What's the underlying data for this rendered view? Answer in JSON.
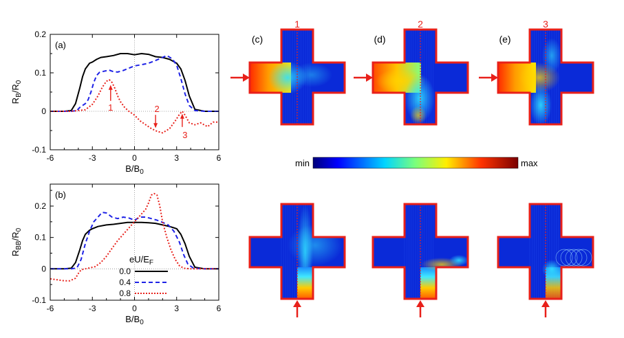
{
  "colors": {
    "black": "#000000",
    "blue": "#1e22e6",
    "red": "#e8201a",
    "frame": "#e8201a"
  },
  "panel_labels": [
    "(a)",
    "(b)",
    "(c)",
    "(d)",
    "(e)"
  ],
  "chart_data": [
    {
      "type": "line",
      "panel": "(a)",
      "xlabel": "B/B0",
      "ylabel": "RB/R0",
      "xlim": [
        -6,
        6
      ],
      "ylim": [
        -0.1,
        0.2
      ],
      "xticks": [
        "-6",
        "-3",
        "0",
        "3",
        "6"
      ],
      "yticks": [
        "-0.1",
        "0",
        "0.1",
        "0.2"
      ],
      "series": [
        {
          "name": "0.0",
          "style": "solid",
          "x": [
            -6,
            -5,
            -4.5,
            -4.2,
            -3.9,
            -3.7,
            -3.5,
            -3.2,
            -3.0,
            -2.7,
            -2.4,
            -2.0,
            -1.5,
            -1.0,
            -0.5,
            0,
            0.5,
            1.0,
            1.5,
            2.0,
            2.5,
            3.0,
            3.3,
            3.6,
            3.9,
            4.3,
            5.0,
            6.0
          ],
          "y": [
            0,
            0,
            0.002,
            0.02,
            0.06,
            0.09,
            0.11,
            0.125,
            0.128,
            0.135,
            0.14,
            0.142,
            0.145,
            0.15,
            0.15,
            0.147,
            0.15,
            0.148,
            0.142,
            0.14,
            0.135,
            0.125,
            0.11,
            0.08,
            0.04,
            0.005,
            0,
            0
          ]
        },
        {
          "name": "0.4",
          "style": "dashed",
          "x": [
            -6,
            -4.5,
            -4.1,
            -3.9,
            -3.7,
            -3.5,
            -3.3,
            -3.1,
            -2.9,
            -2.7,
            -2.5,
            -2.2,
            -1.8,
            -1.5,
            -1.2,
            -0.8,
            -0.4,
            0,
            0.5,
            1.0,
            1.5,
            2.0,
            2.3,
            2.7,
            3.0,
            3.3,
            3.6,
            3.9,
            4.3,
            5.0,
            6.0
          ],
          "y": [
            0,
            0,
            0.002,
            0.01,
            0.015,
            0.02,
            0.03,
            0.05,
            0.075,
            0.093,
            0.101,
            0.104,
            0.107,
            0.103,
            0.102,
            0.106,
            0.112,
            0.118,
            0.121,
            0.125,
            0.132,
            0.14,
            0.145,
            0.136,
            0.12,
            0.085,
            0.045,
            0.015,
            0.002,
            0,
            0
          ]
        },
        {
          "name": "0.8",
          "style": "dotted",
          "x": [
            -6,
            -4.5,
            -4,
            -3.5,
            -3.0,
            -2.6,
            -2.3,
            -2.0,
            -1.8,
            -1.6,
            -1.4,
            -1.2,
            -1.0,
            -0.7,
            -0.4,
            0,
            0.4,
            0.8,
            1.2,
            1.6,
            2.0,
            2.5,
            2.9,
            3.2,
            3.4,
            3.6,
            3.9,
            4.3,
            4.7,
            5.2,
            5.6,
            6.0
          ],
          "y": [
            0,
            0,
            0.002,
            0.004,
            0.018,
            0.04,
            0.062,
            0.078,
            0.082,
            0.075,
            0.06,
            0.04,
            0.025,
            0.01,
            0.0,
            -0.01,
            -0.025,
            -0.035,
            -0.045,
            -0.052,
            -0.056,
            -0.045,
            -0.025,
            -0.008,
            0.0,
            -0.01,
            -0.03,
            -0.035,
            -0.03,
            -0.04,
            -0.028,
            -0.028
          ]
        }
      ],
      "annotations": [
        {
          "text": "1",
          "x": -1.7,
          "y": 0.07
        },
        {
          "text": "2",
          "x": 1.5,
          "y": -0.045
        },
        {
          "text": "3",
          "x": 3.4,
          "y": -0.005
        }
      ]
    },
    {
      "type": "line",
      "panel": "(b)",
      "xlabel": "B/B0",
      "ylabel": "RBB/R0",
      "xlim": [
        -6,
        6
      ],
      "ylim": [
        -0.1,
        0.27
      ],
      "xticks": [
        "-6",
        "-3",
        "0",
        "3",
        "6"
      ],
      "yticks": [
        "-0.1",
        "0",
        "0.1",
        "0.2"
      ],
      "legend_title": "eU/EF",
      "series": [
        {
          "name": "0.0",
          "style": "solid",
          "x": [
            -6,
            -5,
            -4.5,
            -4.2,
            -3.9,
            -3.7,
            -3.5,
            -3.2,
            -3.0,
            -2.6,
            -2.0,
            -1.5,
            -1.0,
            -0.5,
            0,
            0.5,
            1.0,
            1.5,
            2.0,
            2.5,
            3.0,
            3.3,
            3.6,
            3.9,
            4.3,
            5.0,
            6.0
          ],
          "y": [
            0,
            0,
            0.002,
            0.02,
            0.06,
            0.09,
            0.11,
            0.123,
            0.128,
            0.135,
            0.14,
            0.142,
            0.145,
            0.148,
            0.148,
            0.148,
            0.147,
            0.145,
            0.14,
            0.135,
            0.128,
            0.11,
            0.08,
            0.04,
            0.005,
            0,
            0
          ]
        },
        {
          "name": "0.4",
          "style": "dashed",
          "x": [
            -6,
            -4.5,
            -4.1,
            -3.8,
            -3.5,
            -3.2,
            -2.9,
            -2.6,
            -2.3,
            -2.0,
            -1.6,
            -1.2,
            -0.8,
            -0.4,
            0,
            0.4,
            0.8,
            1.2,
            1.6,
            2.0,
            2.4,
            2.8,
            3.2,
            3.5,
            3.8,
            4.2,
            5.0,
            6.0
          ],
          "y": [
            0,
            0,
            0.003,
            0.03,
            0.08,
            0.12,
            0.15,
            0.165,
            0.18,
            0.178,
            0.165,
            0.16,
            0.165,
            0.162,
            0.155,
            0.165,
            0.165,
            0.16,
            0.155,
            0.148,
            0.14,
            0.12,
            0.085,
            0.045,
            0.015,
            0.002,
            0,
            0
          ]
        },
        {
          "name": "0.8",
          "style": "dotted",
          "x": [
            -6,
            -5.5,
            -5.0,
            -4.6,
            -4.2,
            -4.0,
            -3.8,
            -3.5,
            -3.2,
            -2.8,
            -2.4,
            -2.0,
            -1.6,
            -1.2,
            -0.8,
            -0.4,
            0,
            0.4,
            0.8,
            1.0,
            1.2,
            1.4,
            1.6,
            1.8,
            2.0,
            2.3,
            2.6,
            2.9,
            3.2,
            3.5,
            4.0,
            5.0,
            6.0
          ],
          "y": [
            -0.032,
            -0.035,
            -0.038,
            -0.038,
            -0.03,
            -0.015,
            -0.003,
            0.0,
            0.003,
            0.007,
            0.02,
            0.04,
            0.065,
            0.09,
            0.11,
            0.13,
            0.15,
            0.17,
            0.19,
            0.21,
            0.235,
            0.24,
            0.235,
            0.2,
            0.15,
            0.1,
            0.06,
            0.03,
            0.01,
            0.002,
            0,
            0,
            0
          ]
        }
      ]
    }
  ],
  "legend": {
    "title": "eU/EF",
    "entries": [
      "0.0",
      "0.4",
      "0.8"
    ]
  },
  "lead_markers": [
    "1",
    "2",
    "3"
  ],
  "colorbar": {
    "min_label": "min",
    "max_label": "max"
  },
  "maps": [
    {
      "panel": "(c)",
      "marker": "1",
      "inject": "left",
      "hot": "left-arm"
    },
    {
      "panel": "(d)",
      "marker": "2",
      "inject": "left",
      "hot": "left-bottom"
    },
    {
      "panel": "(e)",
      "marker": "3",
      "inject": "left",
      "hot": "left-diagonal"
    },
    {
      "panel": "",
      "marker": "",
      "inject": "bottom",
      "hot": "center-right"
    },
    {
      "panel": "",
      "marker": "",
      "inject": "bottom",
      "hot": "bottom-right"
    },
    {
      "panel": "",
      "marker": "",
      "inject": "bottom",
      "hot": "bottom-right-orbit"
    }
  ]
}
